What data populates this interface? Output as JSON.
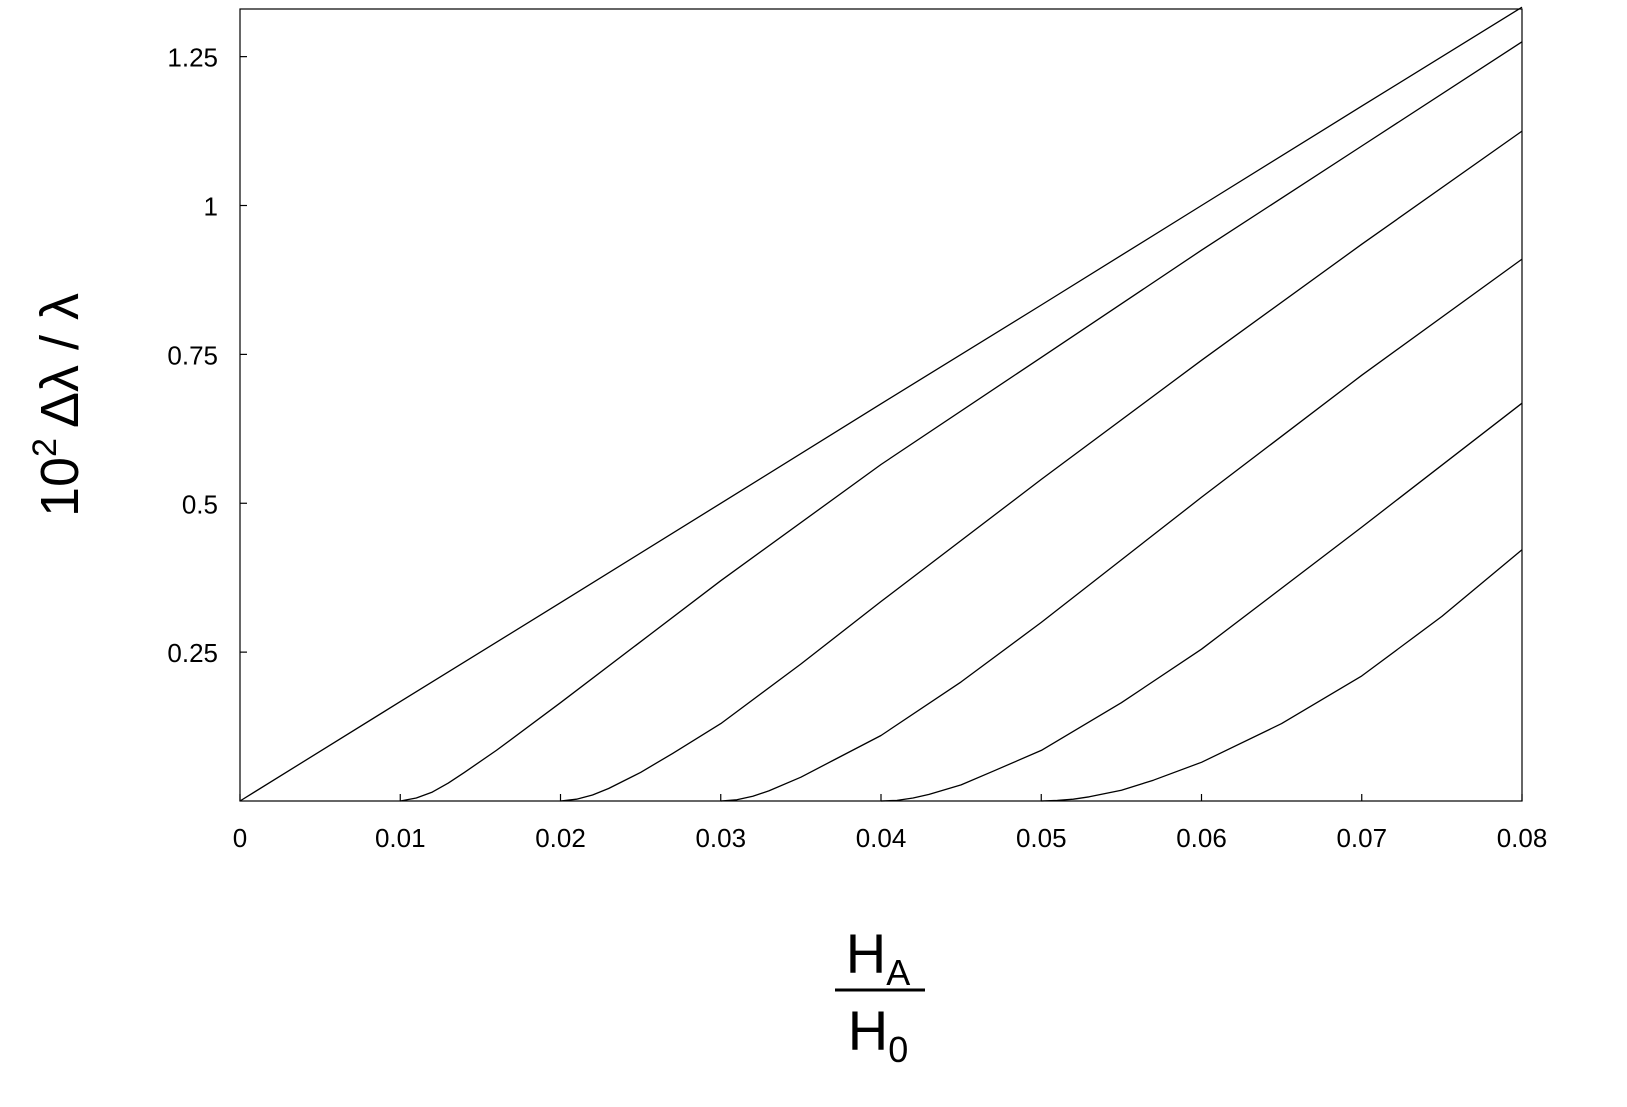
{
  "chart_data": {
    "type": "line",
    "title": "",
    "xlabel": {
      "numerator": "H",
      "numerator_sub": "A",
      "denominator": "H",
      "denominator_sub": "0"
    },
    "ylabel": {
      "prefix": "10",
      "exponent": "2",
      "rest": "Δλ / λ"
    },
    "xlim": [
      0,
      0.08
    ],
    "ylim": [
      0,
      1.33
    ],
    "xticks": [
      0,
      0.01,
      0.02,
      0.03,
      0.04,
      0.05,
      0.06,
      0.07,
      0.08
    ],
    "xtick_labels": [
      "0",
      "0.01",
      "0.02",
      "0.03",
      "0.04",
      "0.05",
      "0.06",
      "0.07",
      "0.08"
    ],
    "yticks": [
      0.25,
      0.5,
      0.75,
      1,
      1.25
    ],
    "ytick_labels": [
      "0.25",
      "0.5",
      "0.75",
      "1",
      "1.25"
    ],
    "grid": false,
    "legend": "none",
    "line_color": "#000000",
    "series": [
      {
        "x": [
          0,
          0.01,
          0.02,
          0.03,
          0.04,
          0.05,
          0.06,
          0.07,
          0.08
        ],
        "y": [
          0,
          0.167,
          0.333,
          0.5,
          0.667,
          0.833,
          1.0,
          1.167,
          1.333
        ]
      },
      {
        "x": [
          0.01,
          0.011,
          0.012,
          0.013,
          0.014,
          0.016,
          0.02,
          0.03,
          0.04,
          0.05,
          0.06,
          0.07,
          0.08
        ],
        "y": [
          0,
          0.005,
          0.015,
          0.03,
          0.048,
          0.085,
          0.165,
          0.37,
          0.565,
          0.745,
          0.925,
          1.1,
          1.275
        ]
      },
      {
        "x": [
          0.02,
          0.021,
          0.022,
          0.023,
          0.025,
          0.027,
          0.03,
          0.035,
          0.04,
          0.05,
          0.06,
          0.07,
          0.08
        ],
        "y": [
          0,
          0.003,
          0.01,
          0.021,
          0.048,
          0.08,
          0.13,
          0.23,
          0.335,
          0.54,
          0.74,
          0.935,
          1.125
        ]
      },
      {
        "x": [
          0.03,
          0.031,
          0.032,
          0.033,
          0.035,
          0.037,
          0.04,
          0.045,
          0.05,
          0.06,
          0.07,
          0.08
        ],
        "y": [
          0,
          0.002,
          0.008,
          0.017,
          0.04,
          0.068,
          0.11,
          0.2,
          0.3,
          0.51,
          0.715,
          0.91
        ]
      },
      {
        "x": [
          0.04,
          0.041,
          0.042,
          0.043,
          0.045,
          0.047,
          0.05,
          0.055,
          0.06,
          0.07,
          0.08
        ],
        "y": [
          0,
          0.001,
          0.005,
          0.011,
          0.027,
          0.05,
          0.085,
          0.165,
          0.255,
          0.46,
          0.668
        ]
      },
      {
        "x": [
          0.05,
          0.051,
          0.052,
          0.053,
          0.055,
          0.057,
          0.06,
          0.065,
          0.07,
          0.075,
          0.08
        ],
        "y": [
          0,
          0.001,
          0.003,
          0.007,
          0.018,
          0.035,
          0.065,
          0.13,
          0.21,
          0.31,
          0.422
        ]
      }
    ]
  }
}
